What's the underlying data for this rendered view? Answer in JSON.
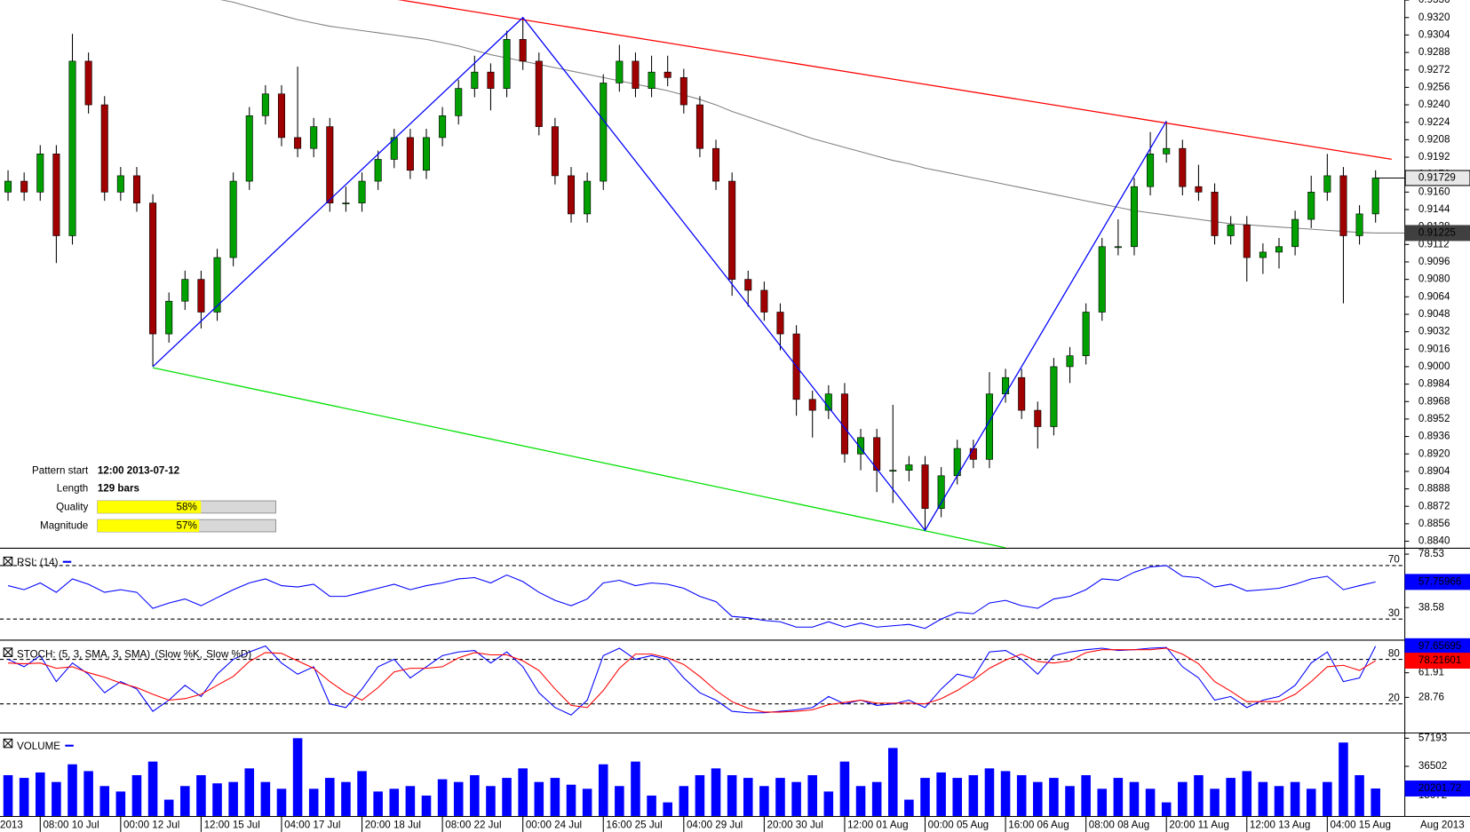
{
  "chart_data": [
    {
      "type": "candlestick",
      "categories": [
        null,
        null,
        "08:00 10 Jul",
        null,
        null,
        null,
        null,
        "00:00 12 Jul",
        null,
        null,
        null,
        null,
        "12:00 15 Jul",
        null,
        null,
        null,
        null,
        "04:00 17 Jul",
        null,
        null,
        null,
        null,
        "20:00 18 Jul",
        null,
        null,
        null,
        null,
        "08:00 22 Jul",
        null,
        null,
        null,
        null,
        "00:00 24 Jul",
        null,
        null,
        null,
        null,
        "16:00 25 Jul",
        null,
        null,
        null,
        null,
        "04:00 29 Jul",
        null,
        null,
        null,
        null,
        "20:00 30 Jul",
        null,
        null,
        null,
        null,
        "12:00 01 Aug",
        null,
        null,
        null,
        null,
        "00:00 05 Aug",
        null,
        null,
        null,
        null,
        "16:00 06 Aug",
        null,
        null,
        null,
        null,
        "08:00 08 Aug",
        null,
        null,
        null,
        null,
        "20:00 11 Aug",
        null,
        null,
        null,
        null,
        "12:00 13 Aug",
        null,
        null,
        null,
        null,
        "04:00 15 Aug",
        null,
        null,
        null
      ],
      "x_start_label": "2013",
      "x_end_label": "Aug 2013",
      "up_color": "#00a000",
      "down_color": "#a00000",
      "ohlc": [
        [
          0.916,
          0.918,
          0.9152,
          0.917
        ],
        [
          0.917,
          0.9178,
          0.9152,
          0.916
        ],
        [
          0.916,
          0.9203,
          0.9152,
          0.9195
        ],
        [
          0.9195,
          0.9203,
          0.9095,
          0.912
        ],
        [
          0.912,
          0.9305,
          0.9112,
          0.928
        ],
        [
          0.928,
          0.9288,
          0.9232,
          0.924
        ],
        [
          0.924,
          0.9248,
          0.9152,
          0.916
        ],
        [
          0.916,
          0.9183,
          0.9152,
          0.9175
        ],
        [
          0.9175,
          0.9183,
          0.9142,
          0.915
        ],
        [
          0.915,
          0.9158,
          0.9,
          0.903
        ],
        [
          0.903,
          0.9068,
          0.9022,
          0.906
        ],
        [
          0.906,
          0.9088,
          0.9052,
          0.908
        ],
        [
          0.908,
          0.9088,
          0.9035,
          0.905
        ],
        [
          0.905,
          0.9108,
          0.9042,
          0.91
        ],
        [
          0.91,
          0.9178,
          0.9092,
          0.917
        ],
        [
          0.917,
          0.9238,
          0.9162,
          0.923
        ],
        [
          0.923,
          0.9258,
          0.9222,
          0.925
        ],
        [
          0.925,
          0.9258,
          0.9202,
          0.921
        ],
        [
          0.921,
          0.9275,
          0.9192,
          0.92
        ],
        [
          0.92,
          0.9228,
          0.9192,
          0.922
        ],
        [
          0.922,
          0.9228,
          0.9142,
          0.915
        ],
        [
          0.915,
          0.9165,
          0.9142,
          0.915
        ],
        [
          0.915,
          0.9178,
          0.9142,
          0.917
        ],
        [
          0.917,
          0.9198,
          0.9162,
          0.919
        ],
        [
          0.919,
          0.9218,
          0.9182,
          0.921
        ],
        [
          0.921,
          0.9218,
          0.9172,
          0.918
        ],
        [
          0.918,
          0.9218,
          0.9172,
          0.921
        ],
        [
          0.921,
          0.9238,
          0.9202,
          0.923
        ],
        [
          0.923,
          0.9263,
          0.9222,
          0.9255
        ],
        [
          0.9255,
          0.9285,
          0.9247,
          0.927
        ],
        [
          0.927,
          0.9278,
          0.9235,
          0.9255
        ],
        [
          0.9255,
          0.9308,
          0.9247,
          0.93
        ],
        [
          0.93,
          0.932,
          0.9272,
          0.928
        ],
        [
          0.928,
          0.9288,
          0.9212,
          0.922
        ],
        [
          0.922,
          0.9228,
          0.9167,
          0.9175
        ],
        [
          0.9175,
          0.9183,
          0.9132,
          0.914
        ],
        [
          0.914,
          0.9178,
          0.9132,
          0.917
        ],
        [
          0.917,
          0.9268,
          0.9162,
          0.926
        ],
        [
          0.926,
          0.9295,
          0.9252,
          0.928
        ],
        [
          0.928,
          0.9288,
          0.9247,
          0.9255
        ],
        [
          0.9255,
          0.9285,
          0.9247,
          0.927
        ],
        [
          0.927,
          0.9285,
          0.9257,
          0.9265
        ],
        [
          0.9265,
          0.9273,
          0.9232,
          0.924
        ],
        [
          0.924,
          0.9248,
          0.9192,
          0.92
        ],
        [
          0.92,
          0.9208,
          0.9162,
          0.917
        ],
        [
          0.917,
          0.9178,
          0.9065,
          0.908
        ],
        [
          0.908,
          0.9088,
          0.9055,
          0.907
        ],
        [
          0.907,
          0.9078,
          0.9042,
          0.905
        ],
        [
          0.905,
          0.9058,
          0.9015,
          0.903
        ],
        [
          0.903,
          0.9038,
          0.8955,
          0.897
        ],
        [
          0.897,
          0.8978,
          0.8935,
          0.896
        ],
        [
          0.896,
          0.8983,
          0.8952,
          0.8975
        ],
        [
          0.8975,
          0.8985,
          0.8912,
          0.892
        ],
        [
          0.892,
          0.8943,
          0.8905,
          0.8935
        ],
        [
          0.8935,
          0.8943,
          0.8885,
          0.8905
        ],
        [
          0.8905,
          0.8965,
          0.8875,
          0.8905
        ],
        [
          0.8905,
          0.8918,
          0.8895,
          0.891
        ],
        [
          0.891,
          0.8918,
          0.885,
          0.887
        ],
        [
          0.887,
          0.8908,
          0.8862,
          0.89
        ],
        [
          0.89,
          0.8933,
          0.8892,
          0.8925
        ],
        [
          0.8925,
          0.8933,
          0.8907,
          0.8915
        ],
        [
          0.8915,
          0.8995,
          0.8907,
          0.8975
        ],
        [
          0.8975,
          0.8998,
          0.8967,
          0.899
        ],
        [
          0.899,
          0.8998,
          0.8952,
          0.896
        ],
        [
          0.896,
          0.8968,
          0.8925,
          0.8945
        ],
        [
          0.8945,
          0.9008,
          0.8937,
          0.9
        ],
        [
          0.9,
          0.9018,
          0.8985,
          0.901
        ],
        [
          0.901,
          0.9058,
          0.9002,
          0.905
        ],
        [
          0.905,
          0.9118,
          0.9042,
          0.911
        ],
        [
          0.911,
          0.9135,
          0.9102,
          0.911
        ],
        [
          0.911,
          0.9173,
          0.9102,
          0.9165
        ],
        [
          0.9165,
          0.9215,
          0.9157,
          0.9195
        ],
        [
          0.9195,
          0.9225,
          0.9187,
          0.92
        ],
        [
          0.92,
          0.9208,
          0.9157,
          0.9165
        ],
        [
          0.9165,
          0.9185,
          0.9152,
          0.916
        ],
        [
          0.916,
          0.9168,
          0.9112,
          0.912
        ],
        [
          0.912,
          0.9138,
          0.9112,
          0.913
        ],
        [
          0.913,
          0.9138,
          0.9078,
          0.91
        ],
        [
          0.91,
          0.9113,
          0.9085,
          0.9105
        ],
        [
          0.9105,
          0.9118,
          0.909,
          0.911
        ],
        [
          0.911,
          0.9143,
          0.9102,
          0.9135
        ],
        [
          0.9135,
          0.9175,
          0.9127,
          0.916
        ],
        [
          0.916,
          0.9195,
          0.9152,
          0.9175
        ],
        [
          0.9175,
          0.9183,
          0.9058,
          0.912
        ],
        [
          0.912,
          0.9148,
          0.9112,
          0.914
        ],
        [
          0.914,
          0.918,
          0.9132,
          0.91729
        ]
      ],
      "ma": {
        "color": "#808080",
        "values": [
          null,
          null,
          null,
          null,
          null,
          null,
          null,
          null,
          null,
          null,
          null,
          null,
          null,
          0.9337,
          0.9334,
          0.933,
          0.9326,
          0.9322,
          0.9318,
          0.9315,
          0.9312,
          0.931,
          0.9308,
          0.9306,
          0.9304,
          0.9302,
          0.93,
          0.9297,
          0.9294,
          0.929,
          0.9286,
          0.9283,
          0.928,
          0.9277,
          0.9274,
          0.9271,
          0.9268,
          0.9265,
          0.9262,
          0.9259,
          0.9256,
          0.9253,
          0.9249,
          0.9245,
          0.924,
          0.9234,
          0.9229,
          0.9224,
          0.9219,
          0.9214,
          0.9209,
          0.9205,
          0.9201,
          0.9197,
          0.9193,
          0.9189,
          0.9186,
          0.9182,
          0.9179,
          0.9176,
          0.9173,
          0.917,
          0.9167,
          0.9164,
          0.9161,
          0.9158,
          0.9155,
          0.9152,
          0.9149,
          0.9146,
          0.9143,
          0.9141,
          0.9139,
          0.9137,
          0.9135,
          0.9133,
          0.9131,
          0.913,
          0.9129,
          0.9128,
          0.9127,
          0.9126,
          0.9125,
          0.9124,
          0.9123,
          0.91225
        ]
      },
      "resistance": {
        "color": "#ff0000",
        "x": [
          24,
          86
        ],
        "y": [
          0.9337,
          0.919
        ]
      },
      "support": {
        "color": "#00e000",
        "x": [
          9,
          62
        ],
        "y": [
          0.8999,
          0.8834
        ]
      },
      "zigzag": {
        "color": "#0000ff",
        "x": [
          9,
          32,
          57,
          72
        ],
        "y": [
          0.9,
          0.932,
          0.885,
          0.9225
        ]
      },
      "ylim": [
        0.8834,
        0.9336
      ],
      "yticks": [
        {
          "value": 0.884,
          "label": "0.8840"
        },
        0.8856,
        0.8872,
        0.8888,
        0.8904,
        {
          "value": 0.892,
          "label": "0.8920"
        },
        0.8936,
        0.8952,
        0.8968,
        0.8984,
        {
          "value": 0.9,
          "label": "0.9000"
        },
        0.9016,
        0.9032,
        0.9048,
        0.9064,
        {
          "value": 0.908,
          "label": "0.9080"
        },
        0.9096,
        0.9112,
        0.9128,
        0.9144,
        {
          "value": 0.916,
          "label": "0.9160"
        },
        0.9176,
        0.9192,
        0.9208,
        0.9224,
        {
          "value": 0.924,
          "label": "0.9240"
        },
        0.9256,
        0.9272,
        0.9288,
        0.9304,
        {
          "value": 0.932,
          "label": "0.9320"
        },
        0.9336
      ],
      "pattern_info": {
        "start_label": "Pattern start",
        "start": "12:00 2013-07-12",
        "length_label": "Length",
        "length": "129 bars",
        "quality_label": "Quality",
        "quality": 58,
        "quality_text": "58%",
        "magnitude_label": "Magnitude",
        "magnitude": 57,
        "magnitude_text": "57%",
        "bar_color": "#ffff00"
      }
    },
    {
      "type": "line",
      "title": "RSI: (14)",
      "series": [
        {
          "color": "#0000ff",
          "values": [
            55,
            52,
            57,
            50,
            60,
            56,
            50,
            52,
            50,
            38,
            42,
            45,
            40,
            46,
            52,
            57,
            60,
            55,
            54,
            56,
            47,
            47,
            50,
            53,
            56,
            52,
            55,
            57,
            60,
            61,
            57,
            63,
            58,
            50,
            44,
            40,
            45,
            57,
            59,
            55,
            57,
            56,
            53,
            47,
            43,
            32,
            31,
            29,
            28,
            24,
            24,
            28,
            24,
            27,
            24,
            25,
            26,
            23,
            30,
            35,
            34,
            42,
            44,
            40,
            38,
            45,
            47,
            52,
            60,
            59,
            65,
            69,
            70,
            62,
            61,
            54,
            56,
            51,
            52,
            53,
            56,
            60,
            62,
            52,
            55,
            57.75966
          ]
        }
      ],
      "levels": [
        70,
        30
      ],
      "ylim": [
        15.3,
        81.2
      ],
      "yticks": [
        78.53,
        38.58
      ]
    },
    {
      "type": "line",
      "title": "STOCH: (5, 3, SMA, 3, SMA)",
      "series": [
        {
          "name": "(Slow %K,",
          "color": "#0000ff",
          "values": [
            80,
            70,
            85,
            50,
            75,
            60,
            35,
            50,
            40,
            10,
            25,
            45,
            30,
            60,
            80,
            90,
            98,
            75,
            60,
            70,
            20,
            15,
            40,
            70,
            80,
            55,
            70,
            85,
            90,
            92,
            75,
            90,
            70,
            35,
            15,
            5,
            25,
            85,
            95,
            80,
            85,
            80,
            55,
            35,
            25,
            10,
            8,
            8,
            10,
            12,
            15,
            30,
            20,
            25,
            18,
            20,
            25,
            15,
            40,
            60,
            55,
            90,
            92,
            80,
            60,
            85,
            90,
            93,
            95,
            92,
            93,
            95,
            96,
            70,
            55,
            25,
            30,
            15,
            25,
            30,
            45,
            75,
            90,
            50,
            55,
            97.65695
          ]
        },
        {
          "name": "Slow %D)",
          "color": "#ff0000",
          "values": [
            75,
            74,
            75,
            68,
            70,
            62,
            56,
            48,
            42,
            33,
            25,
            27,
            33,
            45,
            57,
            77,
            89,
            88,
            78,
            68,
            50,
            35,
            25,
            42,
            63,
            68,
            68,
            70,
            82,
            89,
            86,
            86,
            78,
            65,
            40,
            18,
            15,
            38,
            68,
            87,
            87,
            82,
            73,
            57,
            38,
            23,
            14,
            9,
            9,
            10,
            12,
            19,
            22,
            25,
            21,
            21,
            21,
            20,
            27,
            38,
            52,
            68,
            79,
            87,
            77,
            75,
            78,
            89,
            93,
            93,
            93,
            93,
            95,
            87,
            74,
            50,
            37,
            23,
            23,
            23,
            33,
            50,
            70,
            72,
            65,
            78.21601
          ]
        }
      ],
      "levels": [
        80,
        20
      ],
      "ylim": [
        -17.3,
        102.7
      ],
      "yticks": [
        61.91,
        28.76
      ]
    },
    {
      "type": "bar",
      "title": "VOLUME",
      "color": "#0000ff",
      "values": [
        30000,
        28000,
        32000,
        25000,
        38000,
        33000,
        22000,
        18000,
        30000,
        40000,
        12000,
        22000,
        30000,
        24000,
        25000,
        35000,
        25000,
        20000,
        57193,
        20000,
        28000,
        25000,
        33000,
        18000,
        20000,
        22000,
        15000,
        27000,
        25000,
        30000,
        22000,
        28000,
        35000,
        25000,
        28000,
        23000,
        20000,
        38000,
        22000,
        40000,
        15000,
        10000,
        22000,
        30000,
        35000,
        30000,
        28000,
        22000,
        28000,
        25000,
        30000,
        18000,
        40000,
        22000,
        25000,
        50000,
        12000,
        28000,
        32000,
        28000,
        30000,
        35000,
        33000,
        30000,
        25000,
        28000,
        22000,
        30000,
        20000,
        28000,
        25000,
        20000,
        10000,
        25000,
        30000,
        20000,
        28000,
        33000,
        25000,
        22000,
        25000,
        20000,
        25000,
        54000,
        30000,
        20201.72
      ],
      "ylim": [
        0,
        60000
      ],
      "yticks": [
        57193,
        36502,
        15072
      ]
    }
  ]
}
